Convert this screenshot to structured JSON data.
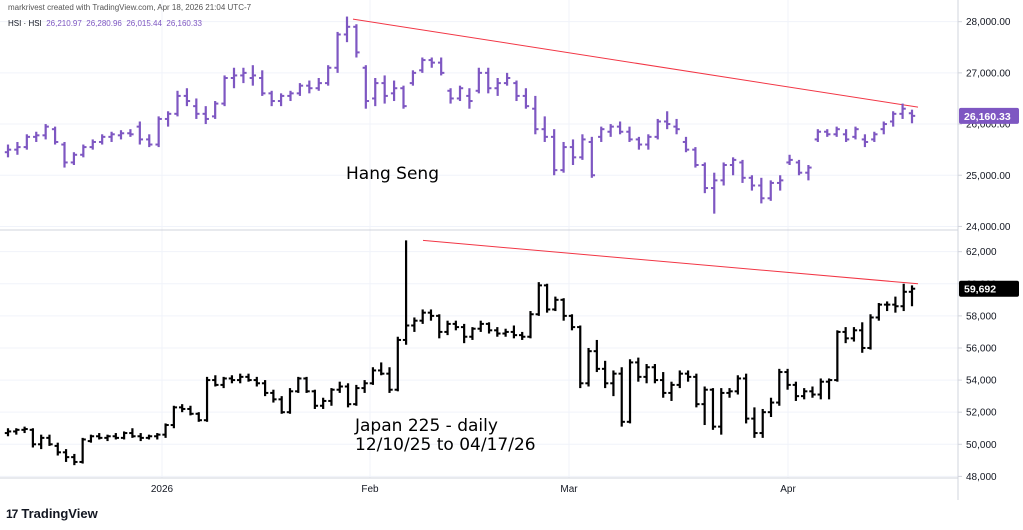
{
  "header": {
    "created_by": "markrivest created with TradingView.com, Apr 18, 2026 21:04 UTC-7"
  },
  "legend": {
    "symbol": "HSI · HSI",
    "o": "26,210.97",
    "h": "26,280.96",
    "l": "26,015.44",
    "c": "26,160.33"
  },
  "brand": {
    "logo": "17",
    "name": "TradingView"
  },
  "colors": {
    "hsi": "#7e57c2",
    "nikkei": "#000000",
    "trend": "#f23645"
  },
  "chart_data": [
    {
      "type": "ohlc",
      "panel": "top",
      "series_name": "Hang Seng",
      "annotation": "Hang Seng",
      "last_value_label": "26,160.33",
      "x_ticks": [
        "2026",
        "Feb",
        "Mar",
        "Apr"
      ],
      "y_ticks": [
        "24,000.00",
        "25,000.00",
        "26,000.00",
        "27,000.00",
        "28,000.00"
      ],
      "ylim": [
        23950,
        28150
      ],
      "trendline": [
        [
          0,
          28050
        ],
        [
          70,
          26330
        ]
      ],
      "bars": [
        [
          25450,
          25600,
          25350,
          25500
        ],
        [
          25500,
          25650,
          25400,
          25550
        ],
        [
          25550,
          25800,
          25500,
          25750
        ],
        [
          25750,
          25850,
          25650,
          25780
        ],
        [
          25780,
          26000,
          25700,
          25950
        ],
        [
          25900,
          25950,
          25600,
          25650
        ],
        [
          25600,
          25650,
          25150,
          25250
        ],
        [
          25250,
          25450,
          25200,
          25400
        ],
        [
          25400,
          25600,
          25350,
          25550
        ],
        [
          25550,
          25700,
          25500,
          25650
        ],
        [
          25650,
          25800,
          25600,
          25750
        ],
        [
          25750,
          25850,
          25650,
          25800
        ],
        [
          25780,
          25880,
          25700,
          25820
        ],
        [
          25820,
          25900,
          25750,
          25800
        ],
        [
          25950,
          26050,
          25600,
          25700
        ],
        [
          25700,
          25800,
          25550,
          25600
        ],
        [
          25600,
          26150,
          25550,
          26100
        ],
        [
          26100,
          26250,
          25950,
          26200
        ],
        [
          26200,
          26650,
          26150,
          26550
        ],
        [
          26550,
          26700,
          26350,
          26450
        ],
        [
          26350,
          26500,
          26100,
          26200
        ],
        [
          26200,
          26350,
          26000,
          26100
        ],
        [
          26150,
          26450,
          26100,
          26400
        ],
        [
          26400,
          26950,
          26350,
          26900
        ],
        [
          26900,
          27100,
          26700,
          26950
        ],
        [
          26950,
          27100,
          26800,
          27000
        ],
        [
          26900,
          27150,
          26750,
          26950
        ],
        [
          26900,
          27050,
          26550,
          26600
        ],
        [
          26600,
          26650,
          26350,
          26450
        ],
        [
          26450,
          26600,
          26350,
          26550
        ],
        [
          26550,
          26650,
          26450,
          26600
        ],
        [
          26600,
          26800,
          26550,
          26750
        ],
        [
          26750,
          26850,
          26600,
          26700
        ],
        [
          26700,
          26900,
          26650,
          26800
        ],
        [
          26800,
          27150,
          26750,
          27100
        ],
        [
          27100,
          27800,
          27000,
          27750
        ],
        [
          27750,
          28100,
          27600,
          27900
        ],
        [
          27900,
          27950,
          27300,
          27400
        ],
        [
          27100,
          27150,
          26300,
          26450
        ],
        [
          26500,
          26900,
          26350,
          26800
        ],
        [
          26800,
          26950,
          26400,
          26550
        ],
        [
          26600,
          26850,
          26450,
          26700
        ],
        [
          26700,
          26750,
          26300,
          26350
        ],
        [
          26800,
          27050,
          26750,
          27000
        ],
        [
          27050,
          27300,
          27000,
          27250
        ],
        [
          27250,
          27300,
          27100,
          27200
        ],
        [
          27200,
          27300,
          26950,
          27000
        ],
        [
          26650,
          26700,
          26400,
          26500
        ],
        [
          26500,
          26750,
          26450,
          26700
        ],
        [
          26550,
          26700,
          26300,
          26450
        ],
        [
          26650,
          27100,
          26600,
          27000
        ],
        [
          27000,
          27100,
          26600,
          26700
        ],
        [
          26700,
          26900,
          26550,
          26800
        ],
        [
          26800,
          27000,
          26750,
          26900
        ],
        [
          26800,
          26850,
          26450,
          26550
        ],
        [
          26550,
          26700,
          26300,
          26350
        ],
        [
          26300,
          26550,
          25800,
          25900
        ],
        [
          25900,
          26150,
          25650,
          25750
        ],
        [
          25750,
          25900,
          25000,
          25100
        ],
        [
          25100,
          25650,
          25050,
          25550
        ],
        [
          25550,
          25700,
          25200,
          25350
        ],
        [
          25350,
          25800,
          25300,
          25700
        ],
        [
          25650,
          25750,
          24950,
          25000
        ],
        [
          25750,
          25950,
          25650,
          25900
        ],
        [
          25850,
          26000,
          25750,
          25950
        ],
        [
          25950,
          26050,
          25800,
          25850
        ],
        [
          25850,
          25950,
          25650,
          25700
        ],
        [
          25700,
          25750,
          25500,
          25600
        ],
        [
          25600,
          25800,
          25500,
          25750
        ],
        [
          25750,
          26100,
          25700,
          26050
        ],
        [
          26050,
          26250,
          25900,
          26000
        ],
        [
          25950,
          26100,
          25800,
          25900
        ],
        [
          25650,
          25750,
          25450,
          25500
        ],
        [
          25500,
          25550,
          25150,
          25200
        ],
        [
          25200,
          25250,
          24650,
          24750
        ],
        [
          24750,
          25050,
          24250,
          24900
        ],
        [
          24900,
          25250,
          24800,
          25200
        ],
        [
          25200,
          25350,
          25000,
          25300
        ],
        [
          25250,
          25300,
          24850,
          24950
        ],
        [
          24950,
          25000,
          24700,
          24800
        ],
        [
          24800,
          24950,
          24450,
          24550
        ],
        [
          24550,
          24900,
          24500,
          24850
        ],
        [
          24850,
          25000,
          24700,
          24900
        ],
        [
          25250,
          25400,
          25200,
          25300
        ],
        [
          25250,
          25300,
          25000,
          25050
        ],
        [
          25050,
          25200,
          24900,
          25150
        ],
        [
          25700,
          25900,
          25650,
          25850
        ],
        [
          25850,
          25900,
          25750,
          25800
        ],
        [
          25800,
          25950,
          25750,
          25900
        ],
        [
          25800,
          25900,
          25650,
          25700
        ],
        [
          25750,
          25950,
          25700,
          25900
        ],
        [
          25700,
          25800,
          25550,
          25650
        ],
        [
          25700,
          25850,
          25650,
          25800
        ],
        [
          25900,
          26050,
          25800,
          26000
        ],
        [
          26050,
          26250,
          25950,
          26200
        ],
        [
          26200,
          26400,
          26100,
          26300
        ],
        [
          26210.97,
          26280.96,
          26015.44,
          26160.33
        ]
      ]
    },
    {
      "type": "ohlc",
      "panel": "bottom",
      "series_name": "Japan 225",
      "annotation_lines": [
        "Japan 225 - daily",
        "12/10/25 to 04/17/26"
      ],
      "last_value_label": "59,692",
      "x_ticks": [
        "2026",
        "Feb",
        "Mar",
        "Apr"
      ],
      "y_ticks": [
        "48,000",
        "50,000",
        "52,000",
        "54,000",
        "56,000",
        "58,000",
        "60,000",
        "62,000"
      ],
      "ylim": [
        47900,
        63100
      ],
      "trendline": [
        [
          0,
          62700
        ],
        [
          70,
          60000
        ]
      ],
      "bars": [
        [
          50700,
          51000,
          50500,
          50800
        ],
        [
          50800,
          51000,
          50600,
          50900
        ],
        [
          50900,
          51100,
          50700,
          50950
        ],
        [
          50900,
          51000,
          49800,
          50000
        ],
        [
          50000,
          50600,
          49700,
          50400
        ],
        [
          50400,
          50600,
          49900,
          50000
        ],
        [
          49900,
          50100,
          49300,
          49500
        ],
        [
          49500,
          49700,
          48900,
          49200
        ],
        [
          49200,
          49400,
          48700,
          48900
        ],
        [
          48900,
          50400,
          48800,
          50300
        ],
        [
          50200,
          50600,
          50100,
          50500
        ],
        [
          50500,
          50700,
          50300,
          50400
        ],
        [
          50400,
          50600,
          50200,
          50500
        ],
        [
          50500,
          50700,
          50300,
          50400
        ],
        [
          50400,
          50800,
          50300,
          50700
        ],
        [
          50700,
          51000,
          50400,
          50500
        ],
        [
          50500,
          50700,
          50200,
          50400
        ],
        [
          50400,
          50600,
          50300,
          50500
        ],
        [
          50500,
          50700,
          50300,
          50600
        ],
        [
          50600,
          51300,
          50400,
          51200
        ],
        [
          51200,
          52400,
          51000,
          52300
        ],
        [
          52300,
          52500,
          52000,
          52200
        ],
        [
          52200,
          52400,
          51800,
          51900
        ],
        [
          51900,
          52000,
          51400,
          51500
        ],
        [
          51500,
          54200,
          51400,
          54000
        ],
        [
          54000,
          54300,
          53600,
          53700
        ],
        [
          53700,
          54200,
          53500,
          54100
        ],
        [
          54100,
          54300,
          53800,
          54000
        ],
        [
          54000,
          54400,
          53800,
          54200
        ],
        [
          54200,
          54400,
          53900,
          54000
        ],
        [
          54000,
          54200,
          53600,
          53800
        ],
        [
          53800,
          54000,
          53000,
          53200
        ],
        [
          53200,
          53400,
          52600,
          52800
        ],
        [
          52800,
          53000,
          51900,
          52000
        ],
        [
          52000,
          53500,
          51900,
          53300
        ],
        [
          53300,
          54200,
          53200,
          54100
        ],
        [
          54100,
          54200,
          53200,
          53300
        ],
        [
          53300,
          53400,
          52200,
          52400
        ],
        [
          52400,
          52900,
          52200,
          52700
        ],
        [
          52700,
          53500,
          52400,
          53400
        ],
        [
          53400,
          53900,
          53200,
          53600
        ],
        [
          53600,
          53800,
          52300,
          52500
        ],
        [
          52500,
          53700,
          52400,
          53500
        ],
        [
          53500,
          54000,
          53200,
          53800
        ],
        [
          53800,
          54800,
          53700,
          54600
        ],
        [
          54600,
          55100,
          54300,
          54400
        ],
        [
          54400,
          54800,
          53200,
          53400
        ],
        [
          53400,
          56700,
          53300,
          56500
        ],
        [
          56500,
          62700,
          56200,
          57400
        ],
        [
          57400,
          57900,
          57000,
          57700
        ],
        [
          57700,
          58400,
          57500,
          58200
        ],
        [
          58200,
          58400,
          57700,
          58000
        ],
        [
          58000,
          58100,
          56600,
          57000
        ],
        [
          57000,
          57700,
          56800,
          57500
        ],
        [
          57500,
          57700,
          57100,
          57300
        ],
        [
          57300,
          57500,
          56300,
          56700
        ],
        [
          56700,
          57300,
          56500,
          57200
        ],
        [
          57200,
          57700,
          57000,
          57500
        ],
        [
          57500,
          57600,
          56900,
          57100
        ],
        [
          57100,
          57300,
          56700,
          56900
        ],
        [
          56900,
          57200,
          56700,
          57000
        ],
        [
          57000,
          57400,
          56600,
          56800
        ],
        [
          56800,
          57000,
          56500,
          56700
        ],
        [
          56700,
          58300,
          56600,
          58100
        ],
        [
          58100,
          60100,
          58000,
          59900
        ],
        [
          59900,
          60000,
          58200,
          58400
        ],
        [
          58400,
          59200,
          58300,
          59000
        ],
        [
          59000,
          59100,
          57700,
          58000
        ],
        [
          58000,
          58100,
          57100,
          57300
        ],
        [
          57300,
          57400,
          53500,
          53800
        ],
        [
          53800,
          56000,
          53600,
          55800
        ],
        [
          55800,
          56500,
          54500,
          54700
        ],
        [
          54700,
          55200,
          53500,
          53800
        ],
        [
          53800,
          54600,
          53000,
          54400
        ],
        [
          54400,
          54800,
          51100,
          51400
        ],
        [
          51400,
          55300,
          51300,
          55100
        ],
        [
          55100,
          55400,
          53900,
          54200
        ],
        [
          54200,
          55000,
          53800,
          54800
        ],
        [
          54800,
          55000,
          53800,
          54000
        ],
        [
          54000,
          54500,
          52900,
          53200
        ],
        [
          53200,
          53900,
          52700,
          53700
        ],
        [
          53700,
          54600,
          53500,
          54400
        ],
        [
          54400,
          54600,
          53900,
          54200
        ],
        [
          54200,
          54400,
          52300,
          52500
        ],
        [
          52500,
          53600,
          51200,
          53400
        ],
        [
          53400,
          53500,
          50900,
          51100
        ],
        [
          51100,
          53500,
          50600,
          53200
        ],
        [
          53200,
          53500,
          52900,
          53300
        ],
        [
          53300,
          54300,
          53100,
          54100
        ],
        [
          54100,
          54400,
          51300,
          51600
        ],
        [
          51600,
          52300,
          50400,
          50700
        ],
        [
          50700,
          52200,
          50400,
          52000
        ],
        [
          52000,
          52900,
          51700,
          52600
        ],
        [
          52600,
          54700,
          52400,
          54500
        ],
        [
          54500,
          54700,
          53400,
          53700
        ],
        [
          53700,
          53900,
          52700,
          53000
        ],
        [
          53000,
          53500,
          52800,
          53300
        ],
        [
          53300,
          53600,
          52900,
          53100
        ],
        [
          53100,
          54100,
          52800,
          53900
        ],
        [
          53900,
          54100,
          52800,
          54000
        ],
        [
          54000,
          57100,
          53900,
          57000
        ],
        [
          57000,
          57300,
          56300,
          56600
        ],
        [
          56600,
          57300,
          56400,
          57100
        ],
        [
          57100,
          57600,
          55700,
          56000
        ],
        [
          56000,
          58100,
          55900,
          57900
        ],
        [
          57900,
          58800,
          57700,
          58700
        ],
        [
          58700,
          58900,
          58300,
          58700
        ],
        [
          58700,
          59200,
          58200,
          58600
        ],
        [
          58600,
          60000,
          58300,
          59500
        ],
        [
          59500,
          59900,
          58600,
          59692
        ]
      ]
    }
  ]
}
